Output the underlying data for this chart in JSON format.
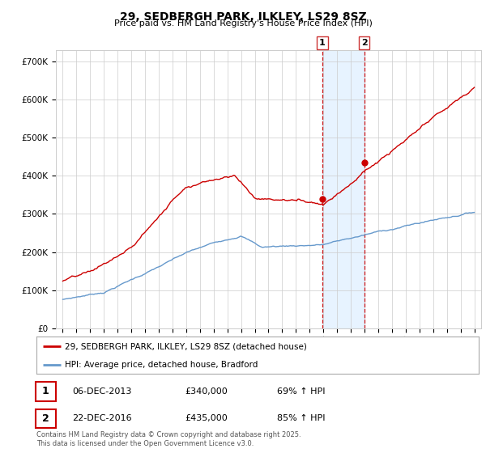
{
  "title": "29, SEDBERGH PARK, ILKLEY, LS29 8SZ",
  "subtitle": "Price paid vs. HM Land Registry's House Price Index (HPI)",
  "legend_label_red": "29, SEDBERGH PARK, ILKLEY, LS29 8SZ (detached house)",
  "legend_label_blue": "HPI: Average price, detached house, Bradford",
  "sale1_date": "06-DEC-2013",
  "sale1_price": 340000,
  "sale1_hpi": "69% ↑ HPI",
  "sale2_date": "22-DEC-2016",
  "sale2_price": 435000,
  "sale2_hpi": "85% ↑ HPI",
  "footer": "Contains HM Land Registry data © Crown copyright and database right 2025.\nThis data is licensed under the Open Government Licence v3.0.",
  "background_color": "#ffffff",
  "plot_bg_color": "#ffffff",
  "grid_color": "#cccccc",
  "red_color": "#cc0000",
  "blue_color": "#6699cc",
  "shade_color": "#ddeeff",
  "vline_color": "#cc0000",
  "ylim": [
    0,
    730000
  ],
  "yticks": [
    0,
    100000,
    200000,
    300000,
    400000,
    500000,
    600000,
    700000
  ],
  "sale1_year": 2013.92,
  "sale2_year": 2016.97
}
